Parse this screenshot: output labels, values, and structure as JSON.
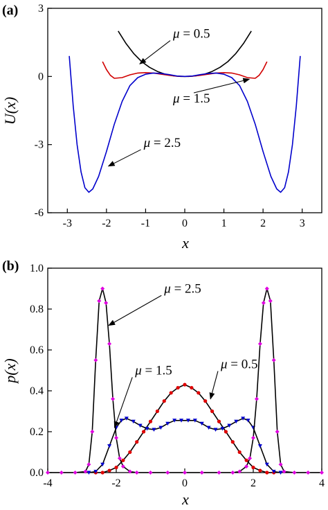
{
  "chart_data": [
    {
      "type": "line",
      "panel_label": "(a)",
      "xlabel": "x",
      "ylabel": "U(x)",
      "xlim": [
        -3.5,
        3.5
      ],
      "ylim": [
        -6,
        3
      ],
      "xticks": [
        -3,
        -2,
        -1,
        0,
        1,
        2,
        3
      ],
      "xtick_labels": [
        "-3",
        "-2",
        "-1",
        "0",
        "1",
        "2",
        "3"
      ],
      "yticks": [
        -6,
        -3,
        0,
        3
      ],
      "ytick_labels": [
        "-6",
        "-3",
        "0",
        "3"
      ],
      "grid": false,
      "series": [
        {
          "name": "μ = 0.5",
          "color": "#000000",
          "x": [
            -1.7,
            -1.5,
            -1.3,
            -1.1,
            -0.9,
            -0.7,
            -0.5,
            -0.3,
            -0.1,
            0,
            0.1,
            0.3,
            0.5,
            0.7,
            0.9,
            1.1,
            1.3,
            1.5,
            1.7
          ],
          "y": [
            2.0,
            1.45,
            1.0,
            0.65,
            0.4,
            0.22,
            0.1,
            0.03,
            0.0,
            0.0,
            0.0,
            0.03,
            0.1,
            0.22,
            0.4,
            0.65,
            1.0,
            1.45,
            2.0
          ]
        },
        {
          "name": "μ = 1.5",
          "color": "#d10000",
          "x": [
            -2.1,
            -2.0,
            -1.9,
            -1.8,
            -1.6,
            -1.4,
            -1.2,
            -1.0,
            -0.8,
            -0.6,
            -0.4,
            -0.2,
            0,
            0.2,
            0.4,
            0.6,
            0.8,
            1.0,
            1.2,
            1.4,
            1.6,
            1.8,
            1.9,
            2.0,
            2.1
          ],
          "y": [
            0.65,
            0.3,
            0.05,
            -0.08,
            -0.05,
            0.07,
            0.15,
            0.17,
            0.15,
            0.1,
            0.05,
            0.01,
            0.0,
            0.01,
            0.05,
            0.1,
            0.15,
            0.17,
            0.15,
            0.07,
            -0.05,
            -0.08,
            0.05,
            0.3,
            0.65
          ]
        },
        {
          "name": "μ = 2.5",
          "color": "#0000cc",
          "x": [
            -2.95,
            -2.85,
            -2.75,
            -2.65,
            -2.55,
            -2.45,
            -2.35,
            -2.2,
            -2.0,
            -1.8,
            -1.6,
            -1.4,
            -1.2,
            -1.0,
            -0.8,
            -0.6,
            -0.4,
            -0.2,
            0,
            0.2,
            0.4,
            0.6,
            0.8,
            1.0,
            1.2,
            1.4,
            1.6,
            1.8,
            2.0,
            2.2,
            2.35,
            2.45,
            2.55,
            2.65,
            2.75,
            2.85,
            2.95
          ],
          "y": [
            0.9,
            -1.3,
            -3.0,
            -4.2,
            -4.9,
            -5.1,
            -4.95,
            -4.4,
            -3.3,
            -2.1,
            -1.1,
            -0.4,
            -0.05,
            0.1,
            0.15,
            0.13,
            0.08,
            0.02,
            0.0,
            0.02,
            0.08,
            0.13,
            0.15,
            0.1,
            -0.05,
            -0.4,
            -1.1,
            -2.1,
            -3.3,
            -4.4,
            -4.95,
            -5.1,
            -4.9,
            -4.2,
            -3.0,
            -1.3,
            0.9
          ]
        }
      ],
      "annotations": [
        {
          "mu": "μ",
          "eq": " = 0.5",
          "text_x": -0.3,
          "text_y": 1.7,
          "tip_x": -1.15,
          "tip_y": 0.55
        },
        {
          "mu": "μ",
          "eq": " = 1.5",
          "text_x": -0.3,
          "text_y": -1.15,
          "tip_x": 1.65,
          "tip_y": -0.12
        },
        {
          "mu": "μ",
          "eq": " = 2.5",
          "text_x": -1.05,
          "text_y": -3.1,
          "tip_x": -1.95,
          "tip_y": -3.95
        }
      ]
    },
    {
      "type": "line",
      "panel_label": "(b)",
      "xlabel": "x",
      "ylabel": "p(x)",
      "xlim": [
        -4,
        4
      ],
      "ylim": [
        0,
        1.0
      ],
      "xticks": [
        -4,
        -2,
        0,
        2,
        4
      ],
      "xtick_labels": [
        "-4",
        "-2",
        "0",
        "2",
        "4"
      ],
      "yticks": [
        0,
        0.2,
        0.4,
        0.6,
        0.8,
        1.0
      ],
      "ytick_labels": [
        "0.0",
        "0.2",
        "0.4",
        "0.6",
        "0.8",
        "1.0"
      ],
      "grid": false,
      "series": [
        {
          "name": "μ = 0.5",
          "line_color": "#000000",
          "marker": "circle",
          "marker_color": "#e00000",
          "x": [
            -2.6,
            -2.4,
            -2.2,
            -2.0,
            -1.8,
            -1.6,
            -1.4,
            -1.2,
            -1.0,
            -0.8,
            -0.6,
            -0.4,
            -0.2,
            0,
            0.2,
            0.4,
            0.6,
            0.8,
            1.0,
            1.2,
            1.4,
            1.6,
            1.8,
            2.0,
            2.2,
            2.4,
            2.6
          ],
          "y": [
            0.0,
            0.0,
            0.01,
            0.025,
            0.06,
            0.1,
            0.15,
            0.2,
            0.25,
            0.3,
            0.35,
            0.39,
            0.415,
            0.43,
            0.415,
            0.39,
            0.35,
            0.3,
            0.25,
            0.2,
            0.15,
            0.1,
            0.06,
            0.025,
            0.01,
            0.0,
            0.0
          ]
        },
        {
          "name": "μ = 1.5",
          "line_color": "#000000",
          "marker": "triangle-down",
          "marker_color": "#0000cc",
          "x": [
            -2.8,
            -2.6,
            -2.4,
            -2.2,
            -2.0,
            -1.85,
            -1.7,
            -1.5,
            -1.3,
            -1.1,
            -0.9,
            -0.7,
            -0.5,
            -0.3,
            -0.1,
            0.1,
            0.3,
            0.5,
            0.7,
            0.9,
            1.1,
            1.3,
            1.5,
            1.7,
            1.85,
            2.0,
            2.2,
            2.4,
            2.6,
            2.8
          ],
          "y": [
            0.0,
            0.005,
            0.04,
            0.13,
            0.22,
            0.255,
            0.265,
            0.25,
            0.23,
            0.215,
            0.21,
            0.22,
            0.24,
            0.255,
            0.255,
            0.255,
            0.255,
            0.24,
            0.22,
            0.21,
            0.215,
            0.23,
            0.25,
            0.265,
            0.255,
            0.22,
            0.13,
            0.04,
            0.005,
            0.0
          ]
        },
        {
          "name": "μ = 2.5",
          "line_color": "#000000",
          "marker": "diamond",
          "marker_color": "#e000e0",
          "x": [
            -4.0,
            -3.6,
            -3.2,
            -2.9,
            -2.8,
            -2.7,
            -2.6,
            -2.5,
            -2.4,
            -2.3,
            -2.2,
            -2.1,
            -2.0,
            -1.9,
            -1.8,
            -1.6,
            -1.4,
            -1.0,
            -0.5,
            0,
            0.5,
            1.0,
            1.4,
            1.6,
            1.8,
            1.9,
            2.0,
            2.1,
            2.2,
            2.3,
            2.4,
            2.5,
            2.6,
            2.7,
            2.8,
            2.9,
            3.2,
            3.6,
            4.0
          ],
          "y": [
            0.0,
            0.0,
            0.0,
            0.005,
            0.04,
            0.2,
            0.55,
            0.84,
            0.9,
            0.83,
            0.63,
            0.36,
            0.17,
            0.07,
            0.03,
            0.005,
            0.0,
            0.0,
            0.0,
            0.0,
            0.0,
            0.0,
            0.0,
            0.005,
            0.03,
            0.07,
            0.17,
            0.36,
            0.63,
            0.83,
            0.9,
            0.84,
            0.55,
            0.2,
            0.04,
            0.005,
            0.0,
            0.0,
            0.0
          ]
        }
      ],
      "annotations": [
        {
          "mu": "μ",
          "eq": " = 2.5",
          "text_x": -0.6,
          "text_y": 0.88,
          "tip_x": -2.22,
          "tip_y": 0.72
        },
        {
          "mu": "μ",
          "eq": " = 1.5",
          "text_x": -1.45,
          "text_y": 0.48,
          "tip_x": -2.05,
          "tip_y": 0.22
        },
        {
          "mu": "μ",
          "eq": " = 0.5",
          "text_x": 1.05,
          "text_y": 0.51,
          "tip_x": 0.75,
          "tip_y": 0.36
        }
      ]
    }
  ]
}
